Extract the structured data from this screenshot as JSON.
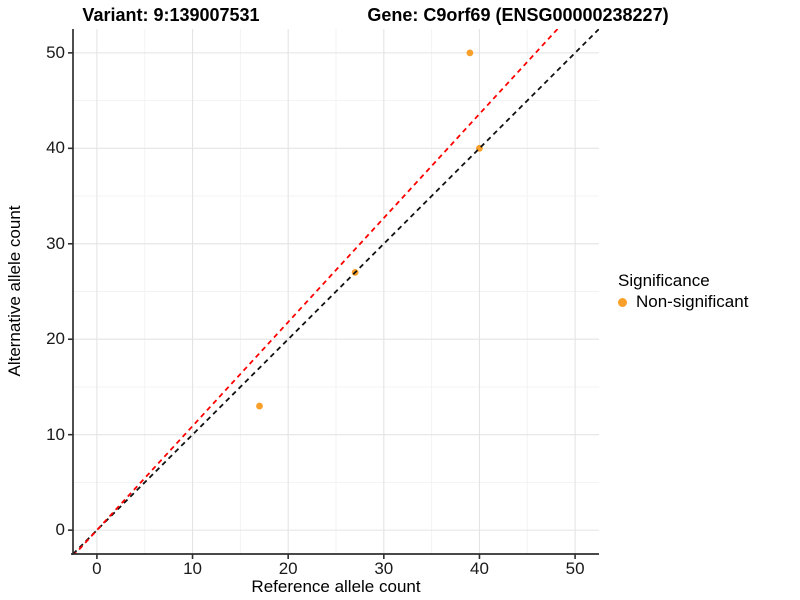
{
  "header": {
    "variant_title": "Variant: 9:139007531",
    "gene_title": "Gene: C9orf69 (ENSG00000238227)"
  },
  "legend": {
    "title": "Significance",
    "items": [
      {
        "label": "Non-significant",
        "color": "#F9A02B"
      }
    ]
  },
  "chart_data": {
    "type": "scatter",
    "title": "Variant: 9:139007531 | Gene: C9orf69 (ENSG00000238227)",
    "xlabel": "Reference allele count",
    "ylabel": "Alternative allele count",
    "xlim": [
      -2.5,
      52.5
    ],
    "ylim": [
      -2.5,
      52.5
    ],
    "x_ticks": [
      0,
      10,
      20,
      30,
      40,
      50
    ],
    "y_ticks": [
      0,
      10,
      20,
      30,
      40,
      50
    ],
    "x_minor_ticks": [
      5,
      15,
      25,
      35,
      45
    ],
    "y_minor_ticks": [
      5,
      15,
      25,
      35,
      45
    ],
    "grid": "major+minor",
    "legend_position": "right",
    "series": [
      {
        "name": "Non-significant",
        "color": "#F9A02B",
        "points": [
          [
            17,
            13
          ],
          [
            27,
            27
          ],
          [
            39,
            50
          ],
          [
            40,
            40
          ]
        ]
      }
    ],
    "lines": [
      {
        "name": "identity-line",
        "slope": 1.0,
        "intercept": 0,
        "style": "dashed",
        "color": "#111111"
      },
      {
        "name": "allele-ratio-line",
        "slope": 1.09,
        "intercept": 0,
        "style": "dashed",
        "color": "#FF0000"
      }
    ],
    "style": {
      "background": "#FFFFFF",
      "grid_major": "#E4E4E4",
      "grid_minor": "#F2F2F2",
      "axis_line": "#2F2F2F",
      "point_radius": 3.4
    }
  }
}
